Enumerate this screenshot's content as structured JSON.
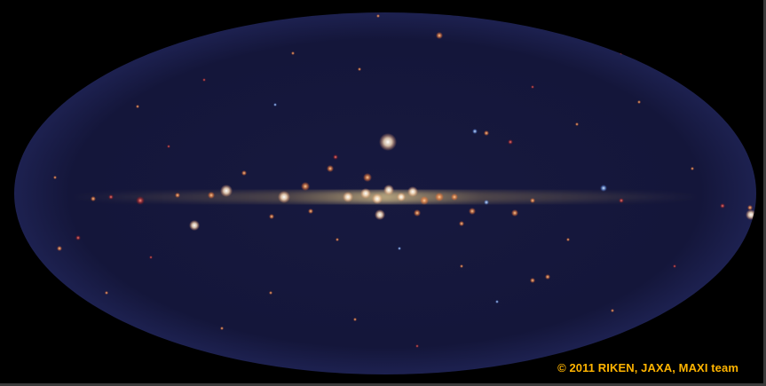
{
  "image": {
    "subject": "all-sky-xray-map",
    "colors": {
      "background": "#000000",
      "sky_fill": "#14163a",
      "sky_edge": "#1d2150",
      "plane_glow": "#b89a60",
      "credit_text": "#ffb400"
    }
  },
  "credit": {
    "text": "© 2011 RIKEN, JAXA, MAXI team"
  }
}
